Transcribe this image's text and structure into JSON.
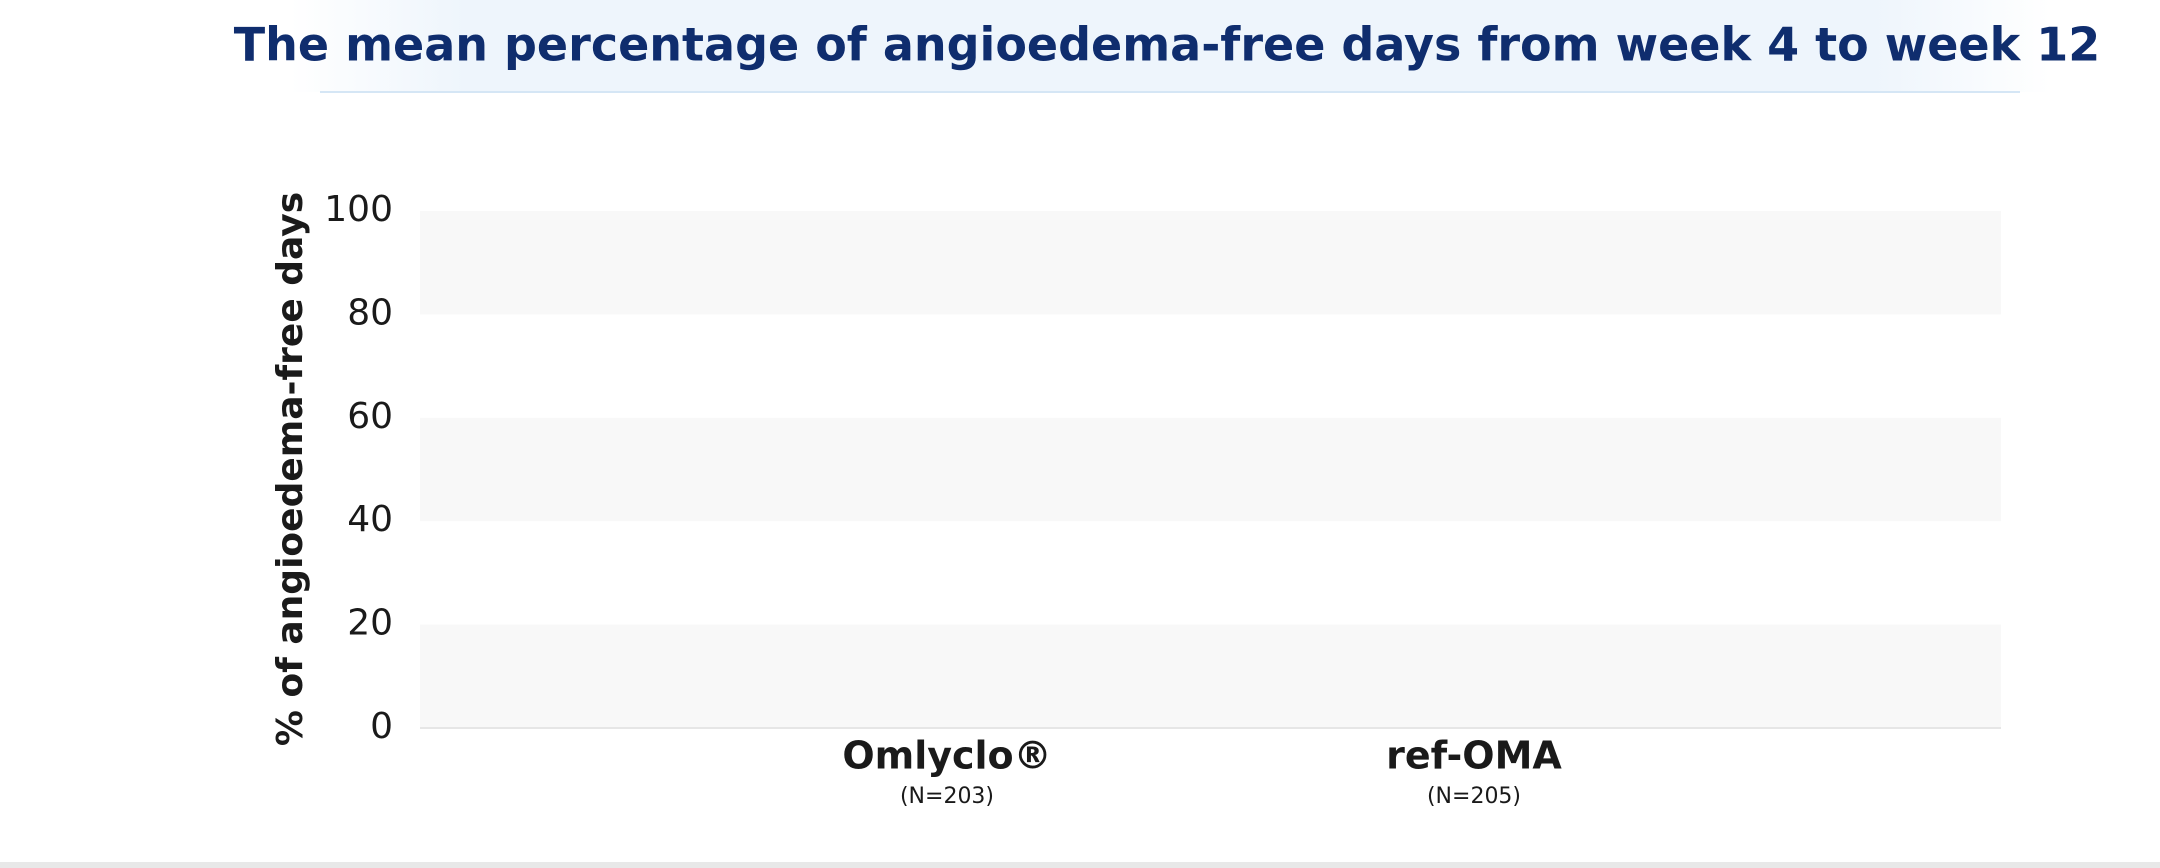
{
  "chart_data": {
    "type": "bar",
    "title": "The mean percentage of angioedema-free days from week 4 to week 12",
    "y_label": "% of angioedema-free days",
    "categories": [
      "Omlyclo®",
      "ref-OMA"
    ],
    "category_notes": [
      "(N=203)",
      "(N=205)"
    ],
    "ylim": [
      0,
      100
    ],
    "yticks": [
      0,
      20,
      40,
      60,
      80,
      100
    ],
    "grid": "bands",
    "band_color": "#f8f8f8"
  }
}
